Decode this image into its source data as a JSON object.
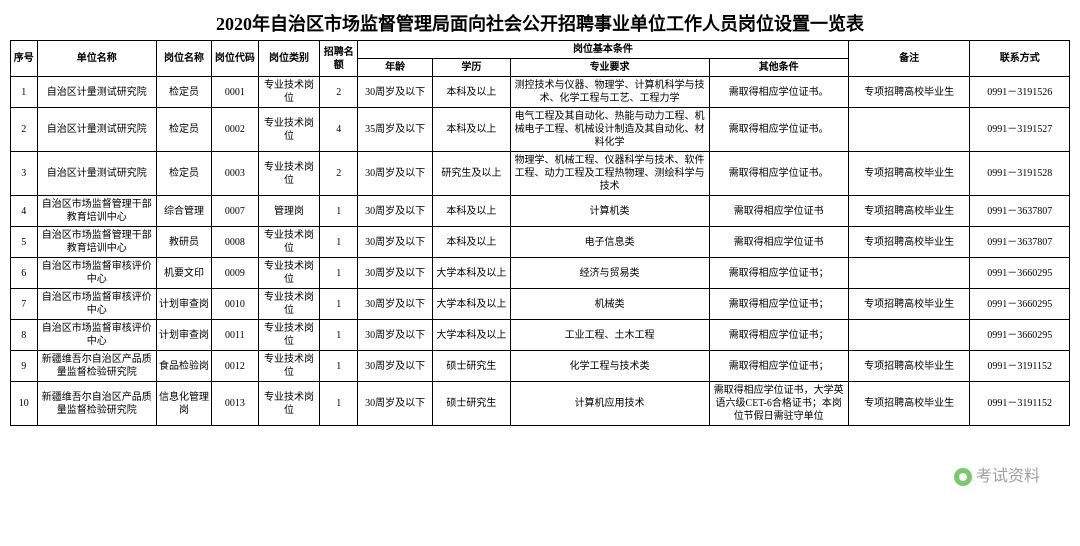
{
  "title": "2020年自治区市场监督管理局面向社会公开招聘事业单位工作人员岗位设置一览表",
  "watermark": "考试资料",
  "headers": {
    "seq": "序号",
    "unit": "单位名称",
    "pos": "岗位名称",
    "code": "岗位代码",
    "cat": "岗位类别",
    "quota": "招聘名额",
    "condGroup": "岗位基本条件",
    "age": "年龄",
    "edu": "学历",
    "major": "专业要求",
    "other": "其他条件",
    "note": "备注",
    "contact": "联系方式"
  },
  "rows": [
    {
      "seq": "1",
      "unit": "自治区计量测试研究院",
      "pos": "检定员",
      "code": "0001",
      "cat": "专业技术岗位",
      "quota": "2",
      "age": "30周岁及以下",
      "edu": "本科及以上",
      "major": "测控技术与仪器、物理学、计算机科学与技术、化学工程与工艺、工程力学",
      "other": "需取得相应学位证书。",
      "note": "专项招聘高校毕业生",
      "contact": "0991－3191526"
    },
    {
      "seq": "2",
      "unit": "自治区计量测试研究院",
      "pos": "检定员",
      "code": "0002",
      "cat": "专业技术岗位",
      "quota": "4",
      "age": "35周岁及以下",
      "edu": "本科及以上",
      "major": "电气工程及其自动化、热能与动力工程、机械电子工程、机械设计制造及其自动化、材料化学",
      "other": "需取得相应学位证书。",
      "note": "",
      "contact": "0991－3191527"
    },
    {
      "seq": "3",
      "unit": "自治区计量测试研究院",
      "pos": "检定员",
      "code": "0003",
      "cat": "专业技术岗位",
      "quota": "2",
      "age": "30周岁及以下",
      "edu": "研究生及以上",
      "major": "物理学、机械工程、仪器科学与技术、软件工程、动力工程及工程热物理、测绘科学与技术",
      "other": "需取得相应学位证书。",
      "note": "专项招聘高校毕业生",
      "contact": "0991－3191528"
    },
    {
      "seq": "4",
      "unit": "自治区市场监督管理干部教育培训中心",
      "pos": "综合管理",
      "code": "0007",
      "cat": "管理岗",
      "quota": "1",
      "age": "30周岁及以下",
      "edu": "本科及以上",
      "major": "计算机类",
      "other": "需取得相应学位证书",
      "note": "专项招聘高校毕业生",
      "contact": "0991－3637807"
    },
    {
      "seq": "5",
      "unit": "自治区市场监督管理干部教育培训中心",
      "pos": "教研员",
      "code": "0008",
      "cat": "专业技术岗位",
      "quota": "1",
      "age": "30周岁及以下",
      "edu": "本科及以上",
      "major": "电子信息类",
      "other": "需取得相应学位证书",
      "note": "专项招聘高校毕业生",
      "contact": "0991－3637807"
    },
    {
      "seq": "6",
      "unit": "自治区市场监督审核评价中心",
      "pos": "机要文印",
      "code": "0009",
      "cat": "专业技术岗位",
      "quota": "1",
      "age": "30周岁及以下",
      "edu": "大学本科及以上",
      "major": "经济与贸易类",
      "other": "需取得相应学位证书；",
      "note": "",
      "contact": "0991－3660295"
    },
    {
      "seq": "7",
      "unit": "自治区市场监督审核评价中心",
      "pos": "计划审查岗",
      "code": "0010",
      "cat": "专业技术岗位",
      "quota": "1",
      "age": "30周岁及以下",
      "edu": "大学本科及以上",
      "major": "机械类",
      "other": "需取得相应学位证书；",
      "note": "专项招聘高校毕业生",
      "contact": "0991－3660295"
    },
    {
      "seq": "8",
      "unit": "自治区市场监督审核评价中心",
      "pos": "计划审查岗",
      "code": "0011",
      "cat": "专业技术岗位",
      "quota": "1",
      "age": "30周岁及以下",
      "edu": "大学本科及以上",
      "major": "工业工程、土木工程",
      "other": "需取得相应学位证书；",
      "note": "",
      "contact": "0991－3660295"
    },
    {
      "seq": "9",
      "unit": "新疆维吾尔自治区产品质量监督检验研究院",
      "pos": "食品检验岗",
      "code": "0012",
      "cat": "专业技术岗位",
      "quota": "1",
      "age": "30周岁及以下",
      "edu": "硕士研究生",
      "major": "化学工程与技术类",
      "other": "需取得相应学位证书；",
      "note": "专项招聘高校毕业生",
      "contact": "0991－3191152"
    },
    {
      "seq": "10",
      "unit": "新疆维吾尔自治区产品质量监督检验研究院",
      "pos": "信息化管理岗",
      "code": "0013",
      "cat": "专业技术岗位",
      "quota": "1",
      "age": "30周岁及以下",
      "edu": "硕士研究生",
      "major": "计算机应用技术",
      "other": "需取得相应学位证书，大学英语六级CET-6合格证书；本岗位节假日需驻守单位",
      "note": "专项招聘高校毕业生",
      "contact": "0991－3191152"
    }
  ],
  "style": {
    "title_fontsize": 18,
    "cell_fontsize": 10,
    "border_color": "#000000",
    "background": "#ffffff"
  }
}
